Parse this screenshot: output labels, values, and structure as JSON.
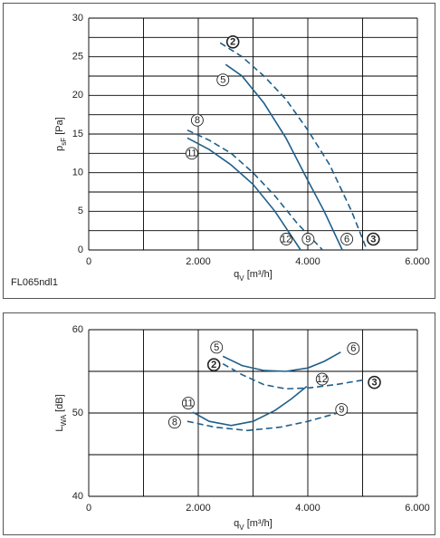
{
  "chart_data": [
    {
      "type": "line",
      "ylabel": {
        "main": "p",
        "sub": "sF",
        "rest": " [Pa]"
      },
      "xlabel": {
        "main": "q",
        "sub": "V",
        "rest": " [m³/h]"
      },
      "note": "FL065ndl1",
      "xlim": [
        0,
        6000
      ],
      "xticks": [
        0,
        {
          "value": 2000,
          "label": "2.000"
        },
        {
          "value": 4000,
          "label": "4.000"
        },
        {
          "value": 6000,
          "label": "6.000"
        }
      ],
      "xminor": [
        1000,
        3000,
        5000
      ],
      "ylim": [
        0,
        30
      ],
      "yticks": [
        0,
        5,
        10,
        15,
        20,
        25,
        30
      ],
      "yminor": [
        2.5,
        7.5,
        12.5,
        17.5,
        22.5,
        27.5
      ],
      "grid": true,
      "series": [
        {
          "start_label": "2",
          "end_label": "3",
          "color": "#1f5f8b",
          "dashed": true,
          "bold_label": true,
          "x": [
            2400,
            2800,
            3200,
            3600,
            4000,
            4400,
            4800,
            5080
          ],
          "values": [
            26.8,
            25,
            22.5,
            19.5,
            15.5,
            11,
            5,
            0
          ]
        },
        {
          "start_label": "5",
          "end_label": "6",
          "color": "#1f5f8b",
          "dashed": false,
          "bold_label": false,
          "x": [
            2500,
            2800,
            3200,
            3600,
            4000,
            4300,
            4630
          ],
          "values": [
            24,
            22.5,
            19,
            14.5,
            9,
            5,
            0
          ]
        },
        {
          "start_label": "8",
          "end_label": "9",
          "color": "#1f5f8b",
          "dashed": true,
          "bold_label": false,
          "x": [
            1800,
            2200,
            2600,
            3000,
            3400,
            3800,
            4270
          ],
          "values": [
            15.5,
            14.2,
            12.5,
            10,
            7,
            3.5,
            0
          ]
        },
        {
          "start_label": "11",
          "end_label": "12",
          "color": "#1f5f8b",
          "dashed": false,
          "bold_label": false,
          "x": [
            1800,
            2200,
            2600,
            3000,
            3400,
            3870
          ],
          "values": [
            14.5,
            13,
            11,
            8.5,
            5,
            0
          ]
        }
      ]
    },
    {
      "type": "line",
      "ylabel": {
        "main": "L",
        "sub": "WA",
        "rest": " [dB]"
      },
      "xlabel": {
        "main": "q",
        "sub": "V",
        "rest": " [m³/h]"
      },
      "xlim": [
        0,
        6000
      ],
      "xticks": [
        0,
        {
          "value": 2000,
          "label": "2.000"
        },
        {
          "value": 4000,
          "label": "4.000"
        },
        {
          "value": 6000,
          "label": "6.000"
        }
      ],
      "xminor": [
        1000,
        3000,
        5000
      ],
      "ylim": [
        40,
        60
      ],
      "yticks": [
        40,
        50,
        60
      ],
      "yminor": [
        45,
        55
      ],
      "grid": true,
      "series": [
        {
          "start_label": "2",
          "end_label": "3",
          "color": "#1f5f8b",
          "dashed": true,
          "bold_label": true,
          "x": [
            2450,
            2800,
            3200,
            3600,
            4000,
            4500,
            5050
          ],
          "values": [
            55.9,
            54.6,
            53.4,
            52.9,
            53,
            53.4,
            54
          ]
        },
        {
          "start_label": "5",
          "end_label": "6",
          "color": "#1f5f8b",
          "dashed": false,
          "bold_label": false,
          "x": [
            2450,
            2800,
            3200,
            3600,
            4000,
            4300,
            4600
          ],
          "values": [
            56.8,
            55.7,
            55.1,
            55,
            55.4,
            56.2,
            57.3
          ]
        },
        {
          "start_label": "8",
          "end_label": "9",
          "color": "#1f5f8b",
          "dashed": true,
          "bold_label": false,
          "x": [
            1800,
            2300,
            2900,
            3500,
            4000,
            4600
          ],
          "values": [
            49,
            48.3,
            47.9,
            48.3,
            49,
            50.1
          ]
        },
        {
          "start_label": "11",
          "end_label": "12",
          "color": "#1f5f8b",
          "dashed": false,
          "bold_label": false,
          "x": [
            1900,
            2200,
            2600,
            3000,
            3400,
            3700,
            3980
          ],
          "values": [
            50.1,
            49,
            48.5,
            49,
            50.3,
            51.7,
            53.2
          ]
        }
      ]
    }
  ]
}
